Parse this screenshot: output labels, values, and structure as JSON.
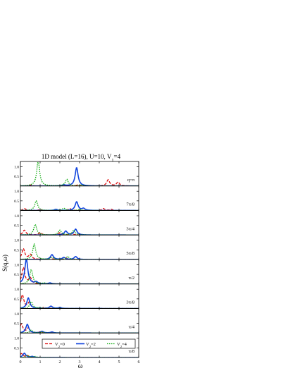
{
  "colors": {
    "V2_0": "#dd1111",
    "V2_2": "#1144dd",
    "V2_4": "#11aa11",
    "axis": "#000000"
  },
  "chart_data": {
    "type": "line",
    "title": "1D model (L=16), U=10, V₁=4",
    "xlabel": "ω",
    "ylabel": "S(q,ω)",
    "xlim": [
      0,
      6
    ],
    "ylim": [
      0,
      1.2
    ],
    "x_ticks": [
      "0",
      "1",
      "2",
      "3",
      "4",
      "5",
      "6"
    ],
    "y_ticks": [
      "0.5",
      "1.0"
    ],
    "legend": {
      "placement": "bottom-panel",
      "entries": [
        {
          "label": "V₂=0",
          "color_key": "V2_0",
          "style": "dashed"
        },
        {
          "label": "V₂=2",
          "color_key": "V2_2",
          "style": "solid"
        },
        {
          "label": "V₂=4",
          "color_key": "V2_4",
          "style": "dotted"
        }
      ]
    },
    "panels": [
      {
        "q_label": "q=π",
        "series": [
          {
            "key": "V2_0",
            "peaks": [
              [
                0.5,
                0.05
              ],
              [
                2.9,
                0.05
              ],
              [
                4.45,
                0.32
              ],
              [
                4.95,
                0.2
              ]
            ]
          },
          {
            "key": "V2_2",
            "peaks": [
              [
                2.2,
                0.05
              ],
              [
                2.85,
                0.95
              ]
            ]
          },
          {
            "key": "V2_4",
            "peaks": [
              [
                0.9,
                1.3
              ],
              [
                2.35,
                0.35
              ],
              [
                3.1,
                0.05
              ]
            ]
          }
        ]
      },
      {
        "q_label": "7π/8",
        "series": [
          {
            "key": "V2_0",
            "peaks": [
              [
                0.2,
                0.1
              ],
              [
                1.0,
                0.05
              ],
              [
                2.5,
                0.1
              ],
              [
                4.2,
                0.1
              ],
              [
                4.6,
                0.06
              ]
            ]
          },
          {
            "key": "V2_2",
            "peaks": [
              [
                1.8,
                0.06
              ],
              [
                2.85,
                0.45
              ],
              [
                3.2,
                0.1
              ]
            ]
          },
          {
            "key": "V2_4",
            "peaks": [
              [
                0.8,
                0.5
              ],
              [
                2.2,
                0.12
              ],
              [
                3.0,
                0.06
              ]
            ]
          }
        ]
      },
      {
        "q_label": "3π/4",
        "series": [
          {
            "key": "V2_0",
            "peaks": [
              [
                0.2,
                0.25
              ],
              [
                1.0,
                0.12
              ],
              [
                2.0,
                0.12
              ],
              [
                2.6,
                0.08
              ]
            ]
          },
          {
            "key": "V2_2",
            "peaks": [
              [
                2.3,
                0.2
              ],
              [
                2.8,
                0.3
              ]
            ]
          },
          {
            "key": "V2_4",
            "peaks": [
              [
                0.75,
                0.55
              ],
              [
                2.0,
                0.25
              ],
              [
                2.7,
                0.25
              ]
            ]
          }
        ]
      },
      {
        "q_label": "5π/8",
        "series": [
          {
            "key": "V2_0",
            "peaks": [
              [
                0.15,
                0.55
              ],
              [
                0.5,
                0.25
              ],
              [
                1.5,
                0.1
              ],
              [
                2.3,
                0.08
              ]
            ]
          },
          {
            "key": "V2_2",
            "peaks": [
              [
                1.6,
                0.25
              ],
              [
                2.2,
                0.1
              ],
              [
                2.8,
                0.15
              ]
            ]
          },
          {
            "key": "V2_4",
            "peaks": [
              [
                0.7,
                0.8
              ],
              [
                1.6,
                0.1
              ],
              [
                2.4,
                0.15
              ]
            ]
          }
        ]
      },
      {
        "q_label": "π/2",
        "series": [
          {
            "key": "V2_0",
            "peaks": [
              [
                0.15,
                0.85
              ],
              [
                0.5,
                0.3
              ],
              [
                1.5,
                0.05
              ]
            ]
          },
          {
            "key": "V2_2",
            "peaks": [
              [
                0.3,
                1.3
              ],
              [
                0.8,
                0.1
              ],
              [
                1.5,
                0.05
              ]
            ]
          },
          {
            "key": "V2_4",
            "peaks": [
              [
                0.55,
                0.75
              ],
              [
                1.2,
                0.05
              ]
            ]
          }
        ]
      },
      {
        "q_label": "3π/8",
        "series": [
          {
            "key": "V2_0",
            "peaks": [
              [
                0.1,
                0.7
              ],
              [
                0.45,
                0.3
              ],
              [
                1.2,
                0.05
              ]
            ]
          },
          {
            "key": "V2_2",
            "peaks": [
              [
                0.4,
                0.55
              ],
              [
                1.55,
                0.12
              ],
              [
                2.0,
                0.05
              ]
            ]
          },
          {
            "key": "V2_4",
            "peaks": [
              [
                0.55,
                0.35
              ],
              [
                1.0,
                0.05
              ]
            ]
          }
        ]
      },
      {
        "q_label": "π/4",
        "series": [
          {
            "key": "V2_0",
            "peaks": [
              [
                0.05,
                0.45
              ],
              [
                0.4,
                0.25
              ],
              [
                1.0,
                0.05
              ]
            ]
          },
          {
            "key": "V2_2",
            "peaks": [
              [
                0.35,
                0.45
              ],
              [
                1.1,
                0.08
              ],
              [
                1.6,
                0.05
              ]
            ]
          },
          {
            "key": "V2_4",
            "peaks": [
              [
                0.55,
                0.15
              ],
              [
                1.1,
                0.05
              ]
            ]
          }
        ]
      },
      {
        "q_label": "π/8",
        "series": [
          {
            "key": "V2_0",
            "peaks": [
              [
                0.05,
                0.2
              ],
              [
                0.35,
                0.1
              ]
            ]
          },
          {
            "key": "V2_2",
            "peaks": [
              [
                0.2,
                0.22
              ],
              [
                0.6,
                0.05
              ]
            ]
          },
          {
            "key": "V2_4",
            "peaks": [
              [
                0.35,
                0.1
              ],
              [
                0.75,
                0.05
              ]
            ]
          }
        ]
      }
    ]
  }
}
